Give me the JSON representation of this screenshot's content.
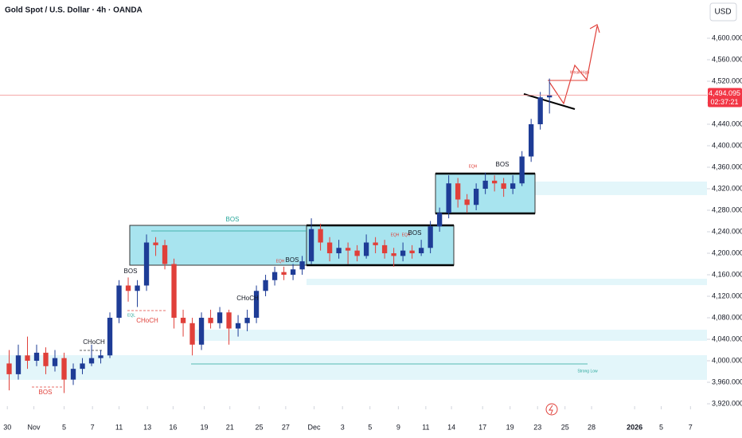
{
  "chart_data": {
    "type": "candlestick",
    "title": "Gold Spot / U.S. Dollar · 4h · OANDA",
    "currency": "USD",
    "up_color": "#1e3c96",
    "down_color": "#e0403a",
    "x": [
      1,
      2,
      3,
      4,
      5,
      6,
      7,
      8,
      9,
      10,
      11,
      12,
      13,
      14,
      15,
      16,
      17,
      18,
      19,
      20,
      21,
      22,
      23,
      24,
      25,
      26,
      27,
      28,
      29,
      30,
      31,
      32,
      33,
      34,
      35,
      36,
      37,
      38,
      39,
      40,
      41,
      42,
      43,
      44,
      45,
      46,
      47,
      48,
      49,
      50,
      51,
      52,
      53,
      54,
      55,
      56,
      57,
      58,
      59,
      60
    ],
    "open": [
      3995,
      3975,
      4010,
      4000,
      4015,
      3990,
      4005,
      3965,
      3985,
      3995,
      4005,
      4010,
      4080,
      4140,
      4130,
      4140,
      4220,
      4215,
      4180,
      4080,
      4070,
      4030,
      4080,
      4070,
      4090,
      4060,
      4070,
      4080,
      4130,
      4150,
      4165,
      4160,
      4170,
      4185,
      4245,
      4220,
      4200,
      4210,
      4205,
      4195,
      4220,
      4215,
      4200,
      4195,
      4205,
      4200,
      4210,
      4250,
      4275,
      4330,
      4300,
      4290,
      4320,
      4335,
      4330,
      4320,
      4330,
      4380,
      4440,
      4490
    ],
    "high": [
      4020,
      4030,
      4045,
      4030,
      4025,
      4020,
      4015,
      3995,
      4005,
      4030,
      4020,
      4090,
      4150,
      4155,
      4150,
      4235,
      4230,
      4225,
      4190,
      4095,
      4080,
      4090,
      4095,
      4100,
      4095,
      4085,
      4095,
      4140,
      4160,
      4175,
      4175,
      4180,
      4195,
      4265,
      4255,
      4230,
      4225,
      4220,
      4215,
      4235,
      4230,
      4225,
      4210,
      4220,
      4215,
      4225,
      4260,
      4285,
      4345,
      4340,
      4310,
      4330,
      4350,
      4345,
      4340,
      4345,
      4390,
      4450,
      4500,
      4525
    ],
    "low": [
      3945,
      3965,
      3985,
      3990,
      3975,
      3980,
      3940,
      3955,
      3975,
      3990,
      3995,
      4005,
      4070,
      4110,
      4100,
      4130,
      4195,
      4170,
      4060,
      4045,
      4010,
      4020,
      4060,
      4060,
      4030,
      4045,
      4055,
      4070,
      4120,
      4140,
      4150,
      4150,
      4160,
      4180,
      4205,
      4185,
      4190,
      4180,
      4185,
      4190,
      4200,
      4190,
      4175,
      4185,
      4190,
      4195,
      4200,
      4240,
      4265,
      4285,
      4275,
      4280,
      4310,
      4315,
      4305,
      4310,
      4325,
      4370,
      4430,
      4460
    ],
    "close": [
      3975,
      4010,
      4000,
      4015,
      3990,
      4005,
      3965,
      3985,
      3995,
      4005,
      4010,
      4080,
      4140,
      4130,
      4140,
      4220,
      4215,
      4180,
      4080,
      4070,
      4030,
      4080,
      4070,
      4090,
      4060,
      4070,
      4080,
      4130,
      4150,
      4165,
      4160,
      4170,
      4185,
      4245,
      4220,
      4200,
      4210,
      4205,
      4195,
      4220,
      4215,
      4200,
      4195,
      4205,
      4200,
      4210,
      4250,
      4275,
      4330,
      4300,
      4290,
      4320,
      4335,
      4330,
      4320,
      4330,
      4380,
      4440,
      4490,
      4494.095
    ],
    "xlim": [
      0,
      77.2
    ],
    "xticks": [
      {
        "value": 0.8,
        "label": "30"
      },
      {
        "value": 3.7,
        "label": "Nov"
      },
      {
        "value": 7.0,
        "label": "5"
      },
      {
        "value": 10.1,
        "label": "7"
      },
      {
        "value": 13.0,
        "label": "11"
      },
      {
        "value": 16.1,
        "label": "13"
      },
      {
        "value": 18.9,
        "label": "16"
      },
      {
        "value": 22.3,
        "label": "19"
      },
      {
        "value": 25.1,
        "label": "21"
      },
      {
        "value": 28.3,
        "label": "25"
      },
      {
        "value": 31.2,
        "label": "27"
      },
      {
        "value": 34.3,
        "label": "Dec"
      },
      {
        "value": 37.4,
        "label": "3"
      },
      {
        "value": 40.4,
        "label": "5"
      },
      {
        "value": 43.5,
        "label": "9"
      },
      {
        "value": 46.5,
        "label": "11"
      },
      {
        "value": 49.3,
        "label": "14"
      },
      {
        "value": 52.7,
        "label": "17"
      },
      {
        "value": 55.7,
        "label": "19"
      },
      {
        "value": 58.7,
        "label": "23"
      },
      {
        "value": 61.7,
        "label": "25"
      },
      {
        "value": 64.6,
        "label": "28"
      },
      {
        "value": 69.3,
        "label": "2026"
      },
      {
        "value": 72.2,
        "label": "5"
      },
      {
        "value": 75.4,
        "label": "7"
      }
    ],
    "ylim": [
      3915.6,
      4671.1
    ],
    "yticks": [
      {
        "value": 3920,
        "label": "3,920.000"
      },
      {
        "value": 3960,
        "label": "3,960.000"
      },
      {
        "value": 4000,
        "label": "4,000.000"
      },
      {
        "value": 4040,
        "label": "4,040.000"
      },
      {
        "value": 4080,
        "label": "4,080.000"
      },
      {
        "value": 4120,
        "label": "4,120.000"
      },
      {
        "value": 4160,
        "label": "4,160.000"
      },
      {
        "value": 4200,
        "label": "4,200.000"
      },
      {
        "value": 4240,
        "label": "4,240.000"
      },
      {
        "value": 4280,
        "label": "4,280.000"
      },
      {
        "value": 4320,
        "label": "4,320.000"
      },
      {
        "value": 4360,
        "label": "4,360.000"
      },
      {
        "value": 4400,
        "label": "4,400.000"
      },
      {
        "value": 4440,
        "label": "4,440.000"
      },
      {
        "value": 4480,
        "label": "4,480.000"
      },
      {
        "value": 4520,
        "label": "4,520.000"
      },
      {
        "value": 4560,
        "label": "4,560.000"
      },
      {
        "value": 4600,
        "label": "4,600.000"
      }
    ],
    "last_price": {
      "value": 4494.095,
      "label": "4,494.095"
    },
    "countdown": "02:37:21",
    "annotations": [
      "BOS",
      "BOS",
      "CHoCH",
      "CHoCH",
      "EQL",
      "BOS",
      "CHoCH",
      "EQH",
      "BOS",
      "EQH",
      "EQH",
      "BOS",
      "EQH",
      "BOS",
      "Weak High",
      "Strong Low"
    ]
  }
}
